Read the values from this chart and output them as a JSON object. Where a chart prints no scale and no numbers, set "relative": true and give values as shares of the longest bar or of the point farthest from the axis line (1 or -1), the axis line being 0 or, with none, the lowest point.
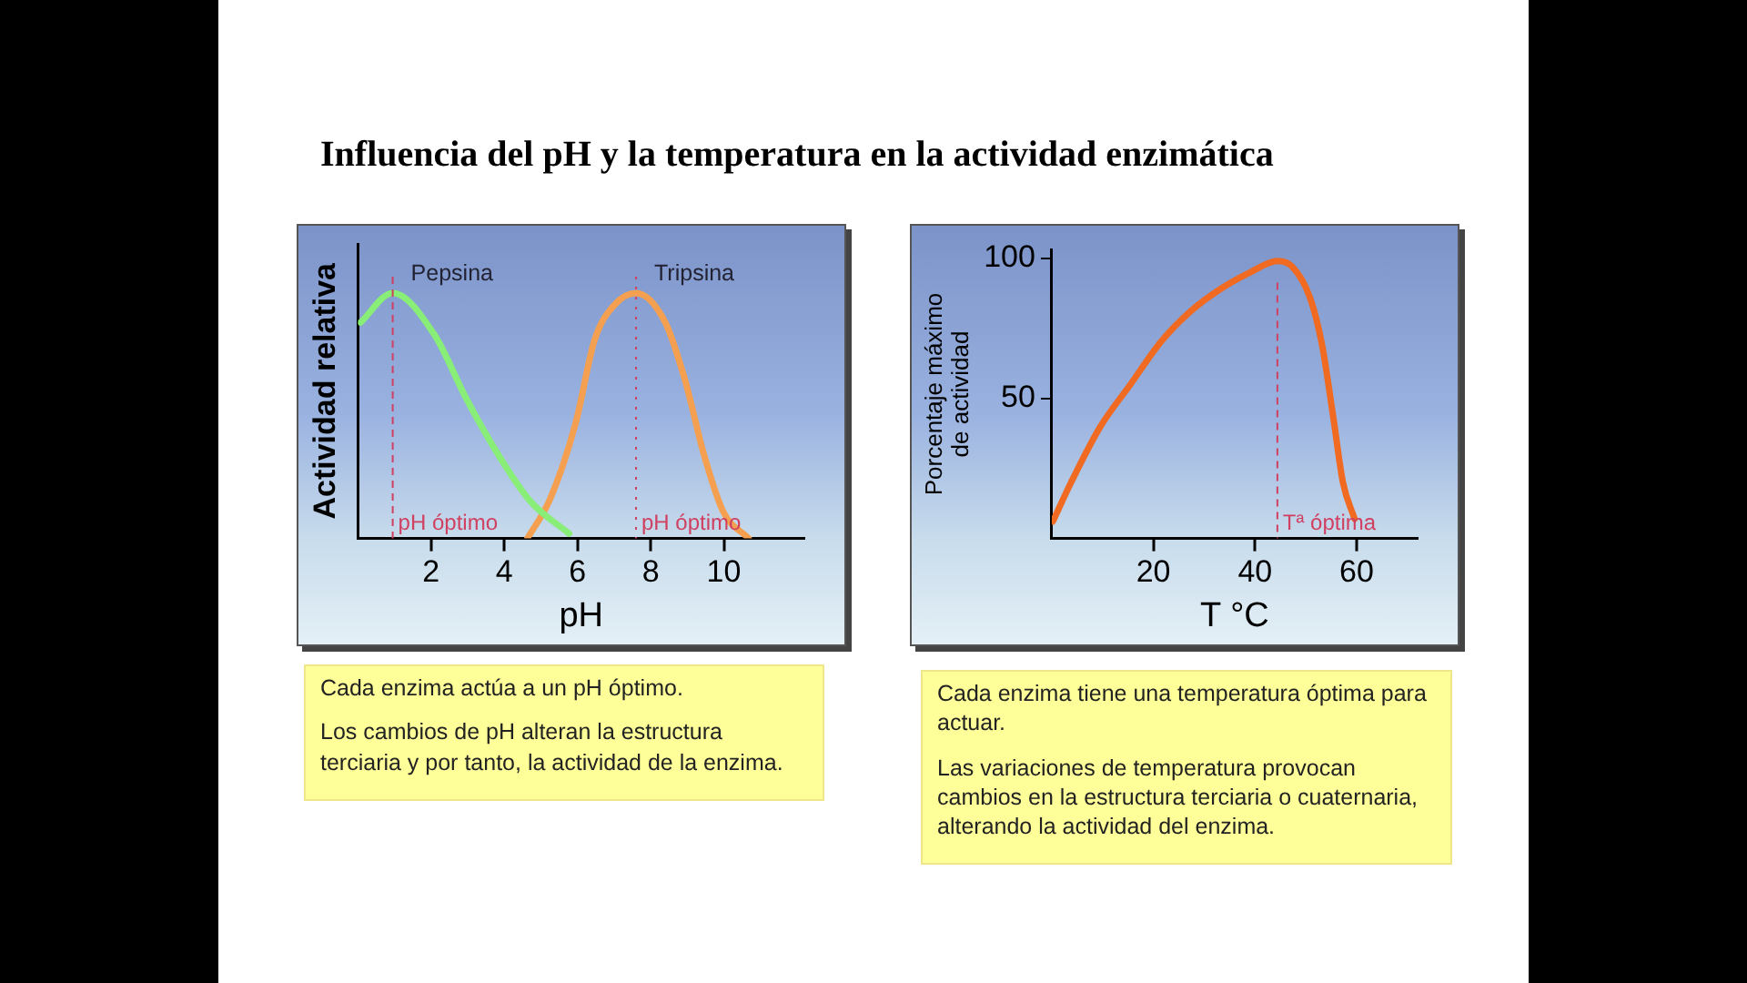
{
  "chart_data": [
    {
      "type": "line",
      "title": "Influencia del pH y la temperatura en la actividad enzimática",
      "xlabel": "pH",
      "ylabel": "Actividad relativa",
      "relative": true,
      "marker": "none",
      "grid": false,
      "legend": false,
      "xlim": [
        0,
        12.2
      ],
      "xticks": [
        2,
        4,
        6,
        8,
        10
      ],
      "series": [
        {
          "name": "Pepsina",
          "color": "#88ee77",
          "x": [
            0.07,
            0.95,
            2.09,
            2.96,
            3.84,
            4.72,
            5.77
          ],
          "values": [
            0.88,
            1,
            0.83,
            0.57,
            0.34,
            0.15,
            0.02
          ]
        },
        {
          "name": "Tripsina",
          "color": "#f5a050",
          "x": [
            4.63,
            5.25,
            5.95,
            6.47,
            7.0,
            7.6,
            8.4,
            8.93,
            9.46,
            9.98,
            10.68
          ],
          "values": [
            0,
            0.16,
            0.47,
            0.81,
            0.95,
            1,
            0.88,
            0.65,
            0.34,
            0.11,
            0
          ]
        }
      ],
      "ref_lines": [
        {
          "axis": "x",
          "value": 0.95,
          "label": "pH óptimo",
          "color": "#d04060",
          "line_style": "dashed"
        },
        {
          "axis": "x",
          "value": 7.6,
          "label": "pH óptimo",
          "color": "#d04060",
          "line_style": "dotted"
        }
      ],
      "annotations": [
        "Cada enzima actúa a un pH óptimo.",
        "Los cambios de pH alteran la estructura terciaria y por tanto, la actividad de la enzima."
      ]
    },
    {
      "type": "line",
      "xlabel": "T °C",
      "ylabel": "Porcentaje máximo\nde actividad",
      "marker": "none",
      "grid": false,
      "legend": false,
      "xlim": [
        0,
        72
      ],
      "xticks": [
        20,
        40,
        60
      ],
      "ylim": [
        0,
        103
      ],
      "yticks": [
        50,
        100
      ],
      "series": [
        {
          "color": "#f06a22",
          "x": [
            0.2,
            3.8,
            9.6,
            15.5,
            21.4,
            27.3,
            33.2,
            39.1,
            44.4,
            47.3,
            50.8,
            53.2,
            55.5,
            57.3,
            59.6
          ],
          "values": [
            6,
            20,
            40,
            55,
            70,
            81,
            89,
            95,
            99,
            97,
            86,
            69,
            42,
            20,
            7
          ]
        }
      ],
      "ref_lines": [
        {
          "axis": "x",
          "value": 44.4,
          "label": "Tª óptima",
          "color": "#d04060",
          "line_style": "dashed"
        }
      ],
      "annotations": [
        "Cada enzima tiene una temperatura óptima para actuar.",
        "Las variaciones de temperatura provocan cambios en la estructura terciaria o cuaternaria, alterando la actividad del enzima."
      ]
    }
  ]
}
